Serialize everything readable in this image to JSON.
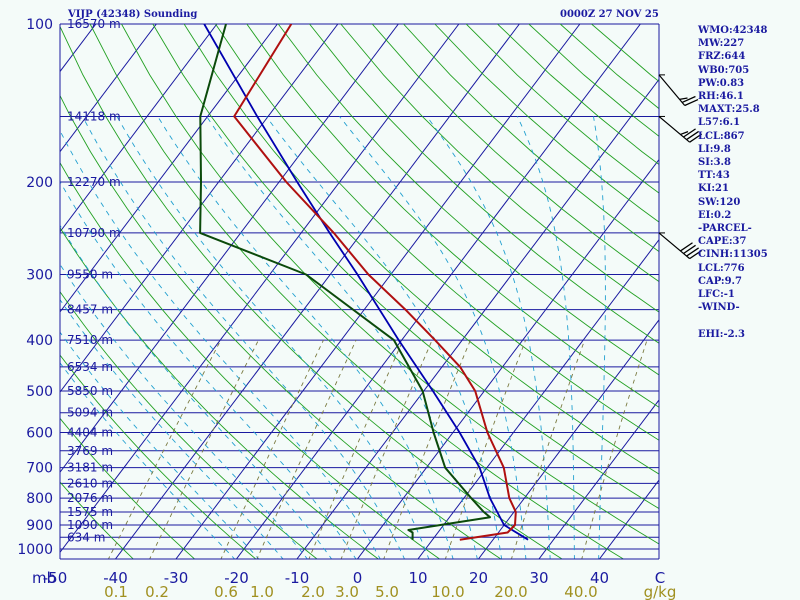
{
  "header": {
    "station_title": "VIJP (42348) Sounding",
    "valid_time": "0000Z 27 NOV 25"
  },
  "indices": [
    "WMO:42348",
    "MW:227",
    "FRZ:644",
    "WB0:705",
    "PW:0.83",
    "RH:46.1",
    "MAXT:25.8",
    "L57:6.1",
    "LCL:867",
    "LI:9.8",
    "SI:3.8",
    "TT:43",
    "KI:21",
    "SW:120",
    "EI:0.2",
    "-PARCEL-",
    "CAPE:37",
    "CINH:11305",
    "LCL:776",
    "CAP:9.7",
    "LFC:-1",
    "-WIND-",
    "",
    "EHI:-2.3"
  ],
  "colors": {
    "background": "#f4fbf9",
    "isobar": "#1a1aa0",
    "isotherm": "#1a1aa0",
    "dry_adiabat": "#22a022",
    "moist_adiabat": "#22a0d0",
    "mixing_ratio": "#7a7a40",
    "temperature": "#b01010",
    "dewpoint": "#0b4a0b",
    "parcel": "#0000b0",
    "axis_text": "#1a1aa0",
    "mixing_text": "#a09020",
    "wind": "#000000"
  },
  "chart_data": {
    "type": "skew-t",
    "title": "VIJP (42348) Sounding",
    "xlabel": "C",
    "ylabel": "mb",
    "xlim": [
      -50,
      50
    ],
    "ylim": [
      1000,
      100
    ],
    "pressure_ticks": [
      100,
      200,
      300,
      400,
      500,
      600,
      700,
      800,
      900,
      1000
    ],
    "temperature_ticks": [
      -50,
      -40,
      -30,
      -20,
      -10,
      0,
      10,
      20,
      30,
      40
    ],
    "mixing_ratio_labels": [
      "0.1",
      "0.2",
      "0.6",
      "1.0",
      "2.0",
      "3.0",
      "5.0",
      "10.0",
      "20.0",
      "40.0"
    ],
    "mixing_ratio_unit": "g/kg",
    "heights": [
      {
        "p": 100,
        "label": "16570 m"
      },
      {
        "p": 150,
        "label": "14118 m"
      },
      {
        "p": 200,
        "label": "12270 m"
      },
      {
        "p": 250,
        "label": "10790 m"
      },
      {
        "p": 300,
        "label": "9550 m"
      },
      {
        "p": 350,
        "label": "8457 m"
      },
      {
        "p": 400,
        "label": "7510 m"
      },
      {
        "p": 450,
        "label": "6534 m"
      },
      {
        "p": 500,
        "label": "5850 m"
      },
      {
        "p": 550,
        "label": "5094 m"
      },
      {
        "p": 600,
        "label": "4404 m"
      },
      {
        "p": 650,
        "label": "3769 m"
      },
      {
        "p": 700,
        "label": "3181 m"
      },
      {
        "p": 750,
        "label": "2610 m"
      },
      {
        "p": 800,
        "label": "2076 m"
      },
      {
        "p": 850,
        "label": "1575 m"
      },
      {
        "p": 900,
        "label": "1090 m"
      },
      {
        "p": 950,
        "label": "634 m"
      }
    ],
    "temperature_profile": [
      {
        "p": 960,
        "t": 14.5
      },
      {
        "p": 930,
        "t": 21.5
      },
      {
        "p": 900,
        "t": 21.8
      },
      {
        "p": 850,
        "t": 20.3
      },
      {
        "p": 800,
        "t": 17.5
      },
      {
        "p": 700,
        "t": 12.8
      },
      {
        "p": 600,
        "t": 5.7
      },
      {
        "p": 500,
        "t": -1.5
      },
      {
        "p": 450,
        "t": -7.0
      },
      {
        "p": 400,
        "t": -14.5
      },
      {
        "p": 350,
        "t": -23.2
      },
      {
        "p": 300,
        "t": -33.7
      },
      {
        "p": 250,
        "t": -44.6
      },
      {
        "p": 200,
        "t": -58.8
      },
      {
        "p": 150,
        "t": -75.6
      },
      {
        "p": 100,
        "t": -77.7
      }
    ],
    "dewpoint_profile": [
      {
        "p": 960,
        "t": 6.7
      },
      {
        "p": 930,
        "t": 5.8
      },
      {
        "p": 920,
        "t": 4.8
      },
      {
        "p": 870,
        "t": 16.7
      },
      {
        "p": 850,
        "t": 15.0
      },
      {
        "p": 800,
        "t": 11.2
      },
      {
        "p": 700,
        "t": 3.1
      },
      {
        "p": 600,
        "t": -3.2
      },
      {
        "p": 500,
        "t": -10.2
      },
      {
        "p": 400,
        "t": -21.3
      },
      {
        "p": 300,
        "t": -44.0
      },
      {
        "p": 250,
        "t": -66.7
      },
      {
        "p": 200,
        "t": -72.9
      },
      {
        "p": 150,
        "t": -81.2
      },
      {
        "p": 100,
        "t": -88.5
      }
    ],
    "parcel_profile": [
      {
        "p": 960,
        "t": 25.8
      },
      {
        "p": 900,
        "t": 20.0
      },
      {
        "p": 800,
        "t": 14.3
      },
      {
        "p": 700,
        "t": 8.8
      },
      {
        "p": 600,
        "t": 1.1
      },
      {
        "p": 500,
        "t": -8.5
      },
      {
        "p": 400,
        "t": -20.5
      },
      {
        "p": 300,
        "t": -35.5
      },
      {
        "p": 250,
        "t": -45.3
      },
      {
        "p": 200,
        "t": -57.0
      },
      {
        "p": 150,
        "t": -71.8
      },
      {
        "p": 100,
        "t": -92.1
      }
    ],
    "wind_barbs": [
      {
        "p": 125,
        "dir": 320,
        "speed": 25
      },
      {
        "p": 150,
        "dir": 310,
        "speed": 35
      },
      {
        "p": 250,
        "dir": 310,
        "speed": 40
      }
    ]
  }
}
